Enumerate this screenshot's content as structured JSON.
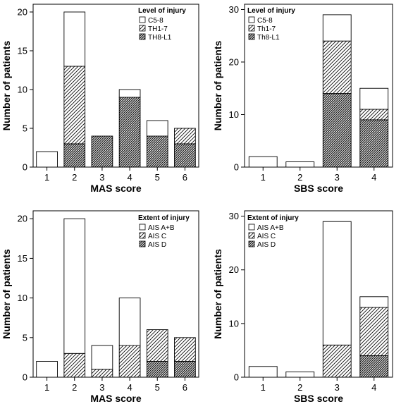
{
  "chart_data": [
    {
      "type": "bar",
      "stacked": true,
      "categories": [
        "1",
        "2",
        "3",
        "4",
        "5",
        "6"
      ],
      "xlabel": "MAS score",
      "ylabel": "Number of patients",
      "ylim": [
        0,
        21
      ],
      "yticks": [
        0,
        5,
        10,
        15,
        20
      ],
      "legend_title": "Level of injury",
      "legend_position": "top-right",
      "series": [
        {
          "name": "TH8-L1",
          "pattern": "dense",
          "values": [
            0,
            3,
            4,
            9,
            4,
            3
          ]
        },
        {
          "name": "TH1-7",
          "pattern": "light",
          "values": [
            0,
            10,
            0,
            0,
            0,
            2
          ]
        },
        {
          "name": "C5-8",
          "pattern": "empty",
          "values": [
            2,
            7,
            0,
            1,
            2,
            0
          ]
        }
      ]
    },
    {
      "type": "bar",
      "stacked": true,
      "categories": [
        "1",
        "2",
        "3",
        "4"
      ],
      "xlabel": "SBS score",
      "ylabel": "Number of patients",
      "ylim": [
        0,
        31
      ],
      "yticks": [
        0,
        10,
        20,
        30
      ],
      "legend_title": "Level of injury",
      "legend_position": "top-left",
      "series": [
        {
          "name": "Th8-L1",
          "pattern": "dense",
          "values": [
            0,
            0,
            14,
            9
          ]
        },
        {
          "name": "Th1-7",
          "pattern": "light",
          "values": [
            0,
            0,
            10,
            2
          ]
        },
        {
          "name": "C5-8",
          "pattern": "empty",
          "values": [
            2,
            1,
            5,
            4
          ]
        }
      ]
    },
    {
      "type": "bar",
      "stacked": true,
      "categories": [
        "1",
        "2",
        "3",
        "4",
        "5",
        "6"
      ],
      "xlabel": "MAS score",
      "ylabel": "Number of patients",
      "ylim": [
        0,
        21
      ],
      "yticks": [
        0,
        5,
        10,
        15,
        20
      ],
      "legend_title": "Extent of injury",
      "legend_position": "top-right",
      "series": [
        {
          "name": "AIS D",
          "pattern": "dense",
          "values": [
            0,
            0,
            0,
            0,
            2,
            2
          ]
        },
        {
          "name": "AIS C",
          "pattern": "light",
          "values": [
            0,
            3,
            1,
            4,
            4,
            3
          ]
        },
        {
          "name": "AIS A+B",
          "pattern": "empty",
          "values": [
            2,
            17,
            3,
            6,
            0,
            0
          ]
        }
      ]
    },
    {
      "type": "bar",
      "stacked": true,
      "categories": [
        "1",
        "2",
        "3",
        "4"
      ],
      "xlabel": "SBS score",
      "ylabel": "Number of patients",
      "ylim": [
        0,
        31
      ],
      "yticks": [
        0,
        10,
        20,
        30
      ],
      "legend_title": "Extent of injury",
      "legend_position": "top-left",
      "series": [
        {
          "name": "AIS D",
          "pattern": "dense",
          "values": [
            0,
            0,
            0,
            4
          ]
        },
        {
          "name": "AIS C",
          "pattern": "light",
          "values": [
            0,
            0,
            6,
            9
          ]
        },
        {
          "name": "AIS A+B",
          "pattern": "empty",
          "values": [
            2,
            1,
            23,
            2
          ]
        }
      ]
    }
  ]
}
